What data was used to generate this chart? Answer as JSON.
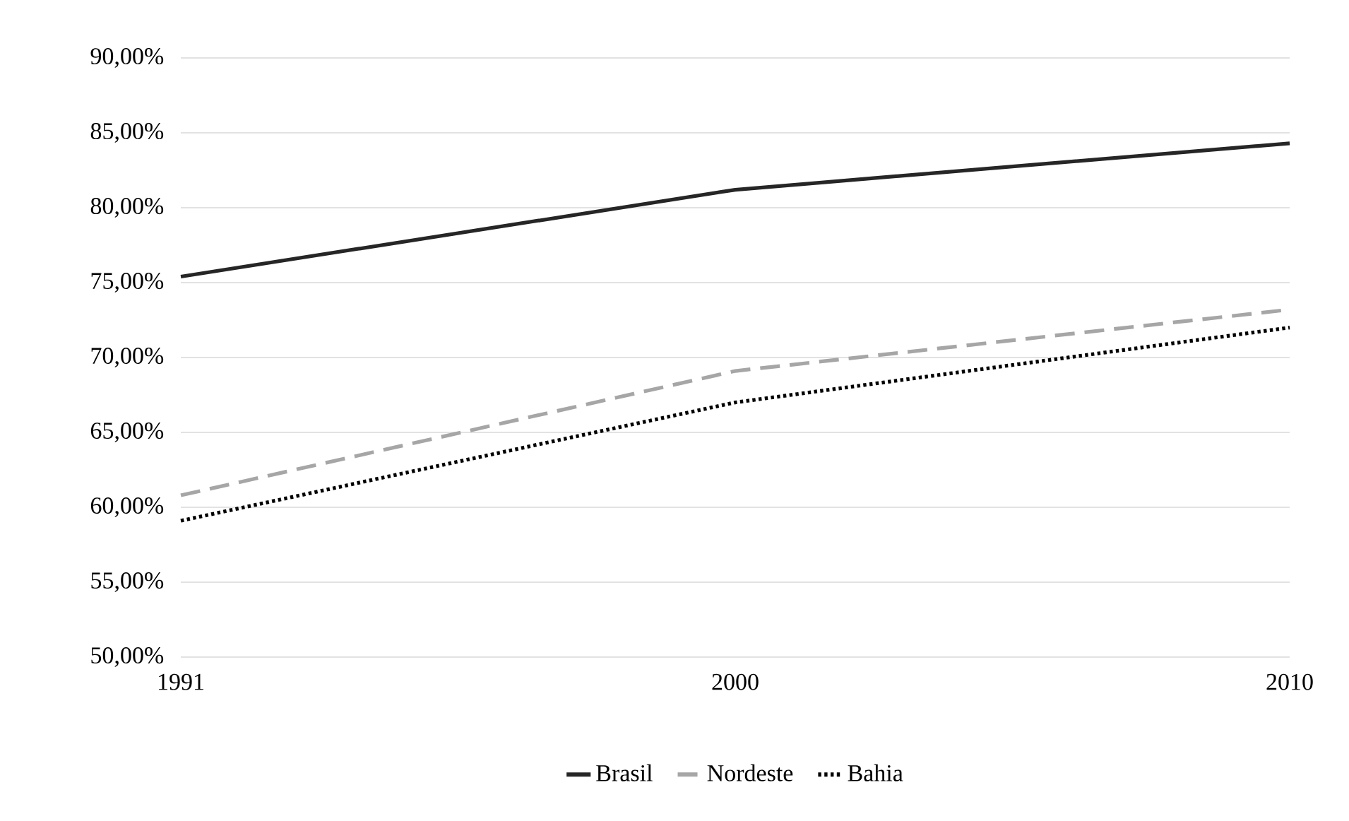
{
  "chart_data": {
    "type": "line",
    "categories": [
      "1991",
      "2000",
      "2010"
    ],
    "series": [
      {
        "name": "Brasil",
        "color": "#262626",
        "line_style": "solid",
        "values": [
          75.4,
          81.2,
          84.3
        ]
      },
      {
        "name": "Nordeste",
        "color": "#a6a6a6",
        "line_style": "dashed",
        "values": [
          60.8,
          69.1,
          73.2
        ]
      },
      {
        "name": "Bahia",
        "color": "#000000",
        "line_style": "dotted",
        "values": [
          59.1,
          67.0,
          72.0
        ]
      }
    ],
    "ylim": [
      50,
      90
    ],
    "yticks": [
      {
        "value": 50,
        "label": "50,00%"
      },
      {
        "value": 55,
        "label": "55,00%"
      },
      {
        "value": 60,
        "label": "60,00%"
      },
      {
        "value": 65,
        "label": "65,00%"
      },
      {
        "value": 70,
        "label": "70,00%"
      },
      {
        "value": 75,
        "label": "75,00%"
      },
      {
        "value": 80,
        "label": "80,00%"
      },
      {
        "value": 85,
        "label": "85,00%"
      },
      {
        "value": 90,
        "label": "90,00%"
      }
    ],
    "grid": "y",
    "legend": "bottom"
  }
}
